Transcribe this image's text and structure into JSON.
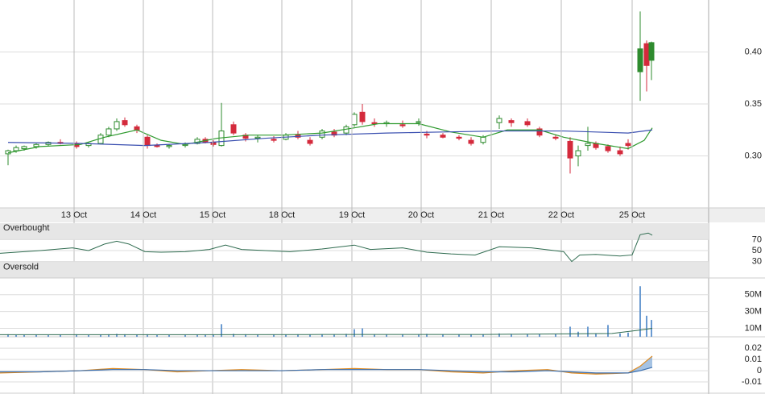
{
  "chart_data": [
    {
      "type": "candlestick",
      "xlim": [
        0,
        88
      ],
      "xticks": [
        {
          "value": 9.2,
          "label": "13 Oct"
        },
        {
          "value": 17.8,
          "label": "14 Oct"
        },
        {
          "value": 26.4,
          "label": "15 Oct"
        },
        {
          "value": 35,
          "label": "18 Oct"
        },
        {
          "value": 43.7,
          "label": "19 Oct"
        },
        {
          "value": 52.3,
          "label": "20 Oct"
        },
        {
          "value": 61,
          "label": "21 Oct"
        },
        {
          "value": 69.7,
          "label": "22 Oct"
        },
        {
          "value": 78.5,
          "label": "25 Oct"
        }
      ],
      "ylim": [
        0.25,
        0.45
      ],
      "yticks": [
        {
          "value": 0.3,
          "label": "0.30"
        },
        {
          "value": 0.35,
          "label": "0.35"
        },
        {
          "value": 0.4,
          "label": "0.40"
        }
      ],
      "grid": true,
      "up_color": "#2e8b2e",
      "down_color": "#d42a3c",
      "x": [
        1,
        2,
        3,
        4.5,
        6,
        7.5,
        9.5,
        11,
        12.5,
        13.5,
        14.5,
        15.5,
        17,
        18.3,
        19.5,
        21,
        23,
        24.5,
        25.5,
        26.5,
        27.5,
        29,
        30.5,
        32,
        34,
        35.5,
        37,
        38.5,
        40,
        41.5,
        43,
        44,
        45,
        46.5,
        48,
        50,
        52,
        53,
        55,
        57,
        58.5,
        60,
        62,
        63.5,
        65.5,
        67,
        69,
        70.8,
        71.8,
        73,
        74,
        75.5,
        77,
        78,
        79.5,
        80.3,
        80.9
      ],
      "open": [
        0.302,
        0.305,
        0.307,
        0.309,
        0.311,
        0.313,
        0.312,
        0.31,
        0.312,
        0.32,
        0.326,
        0.334,
        0.328,
        0.318,
        0.31,
        0.309,
        0.31,
        0.312,
        0.316,
        0.313,
        0.31,
        0.33,
        0.32,
        0.317,
        0.316,
        0.316,
        0.32,
        0.315,
        0.318,
        0.323,
        0.322,
        0.33,
        0.342,
        0.332,
        0.331,
        0.33,
        0.332,
        0.321,
        0.32,
        0.318,
        0.315,
        0.313,
        0.332,
        0.334,
        0.333,
        0.326,
        0.318,
        0.314,
        0.3,
        0.31,
        0.312,
        0.309,
        0.305,
        0.312,
        0.381,
        0.408,
        0.392
      ],
      "high": [
        0.306,
        0.31,
        0.31,
        0.312,
        0.314,
        0.316,
        0.314,
        0.313,
        0.322,
        0.328,
        0.336,
        0.337,
        0.33,
        0.32,
        0.312,
        0.311,
        0.313,
        0.318,
        0.318,
        0.315,
        0.351,
        0.333,
        0.322,
        0.32,
        0.319,
        0.322,
        0.324,
        0.318,
        0.326,
        0.326,
        0.33,
        0.342,
        0.35,
        0.336,
        0.334,
        0.334,
        0.336,
        0.324,
        0.322,
        0.32,
        0.318,
        0.32,
        0.339,
        0.336,
        0.336,
        0.328,
        0.32,
        0.318,
        0.31,
        0.328,
        0.314,
        0.311,
        0.309,
        0.316,
        0.439,
        0.411,
        0.41
      ],
      "low": [
        0.291,
        0.303,
        0.305,
        0.307,
        0.309,
        0.311,
        0.307,
        0.308,
        0.311,
        0.318,
        0.324,
        0.328,
        0.322,
        0.307,
        0.308,
        0.307,
        0.308,
        0.311,
        0.312,
        0.309,
        0.309,
        0.32,
        0.314,
        0.313,
        0.313,
        0.315,
        0.316,
        0.31,
        0.316,
        0.318,
        0.32,
        0.328,
        0.33,
        0.328,
        0.328,
        0.327,
        0.329,
        0.317,
        0.317,
        0.315,
        0.31,
        0.311,
        0.326,
        0.328,
        0.328,
        0.318,
        0.315,
        0.283,
        0.29,
        0.305,
        0.306,
        0.303,
        0.3,
        0.306,
        0.353,
        0.362,
        0.373
      ],
      "close": [
        0.305,
        0.308,
        0.309,
        0.311,
        0.313,
        0.312,
        0.309,
        0.312,
        0.32,
        0.326,
        0.333,
        0.33,
        0.325,
        0.31,
        0.309,
        0.31,
        0.311,
        0.316,
        0.313,
        0.311,
        0.324,
        0.322,
        0.317,
        0.318,
        0.315,
        0.32,
        0.318,
        0.312,
        0.324,
        0.32,
        0.328,
        0.34,
        0.333,
        0.331,
        0.332,
        0.329,
        0.333,
        0.32,
        0.318,
        0.317,
        0.312,
        0.318,
        0.336,
        0.332,
        0.33,
        0.32,
        0.317,
        0.298,
        0.305,
        0.312,
        0.308,
        0.305,
        0.302,
        0.31,
        0.403,
        0.387,
        0.409
      ],
      "lines": [
        {
          "color": "#2e9a2e",
          "x": [
            1,
            5,
            10,
            13,
            17,
            20,
            23,
            27,
            31,
            35,
            40,
            44,
            47,
            52,
            56,
            60,
            63,
            67,
            70,
            74,
            78,
            80,
            81
          ],
          "values": [
            0.303,
            0.309,
            0.311,
            0.318,
            0.325,
            0.315,
            0.311,
            0.317,
            0.32,
            0.32,
            0.322,
            0.327,
            0.331,
            0.331,
            0.323,
            0.318,
            0.325,
            0.325,
            0.318,
            0.312,
            0.307,
            0.315,
            0.327
          ]
        },
        {
          "color": "#3a4fb0",
          "x": [
            1,
            10,
            18,
            26,
            33,
            40,
            48,
            55,
            62,
            70,
            78,
            81
          ],
          "values": [
            0.313,
            0.312,
            0.31,
            0.313,
            0.317,
            0.32,
            0.322,
            0.323,
            0.324,
            0.324,
            0.322,
            0.325
          ]
        }
      ]
    },
    {
      "type": "line",
      "ylim": [
        0,
        100
      ],
      "yticks": [
        30,
        50,
        70
      ],
      "color": "#2e6b4f",
      "annotations": [
        "Overbought",
        "Oversold"
      ],
      "x": [
        0,
        5,
        9,
        11,
        13,
        14.5,
        16,
        18,
        20,
        23,
        26,
        28,
        30,
        33,
        36,
        40,
        44,
        46,
        50,
        53,
        56,
        59,
        62,
        66,
        70,
        71,
        72,
        74,
        77,
        78.5,
        79.5,
        80.5,
        81
      ],
      "values": [
        45,
        50,
        55,
        50,
        62,
        67,
        62,
        48,
        47,
        48,
        52,
        60,
        52,
        50,
        48,
        53,
        60,
        52,
        55,
        47,
        44,
        42,
        57,
        55,
        48,
        30,
        42,
        43,
        40,
        42,
        79,
        82,
        78
      ]
    },
    {
      "type": "bar",
      "ylim": [
        0,
        65000000
      ],
      "yticks": [
        {
          "value": 10000000,
          "label": "10M"
        },
        {
          "value": 30000000,
          "label": "30M"
        },
        {
          "value": 50000000,
          "label": "50M"
        }
      ],
      "color": "#6b9bd1",
      "x": [
        1,
        2,
        3,
        4.5,
        6,
        7.5,
        9.5,
        11,
        12.5,
        13.5,
        14.5,
        15.5,
        17,
        18.3,
        19.5,
        21,
        23,
        24.5,
        25.5,
        26.5,
        27.5,
        29,
        30.5,
        32,
        34,
        35.5,
        37,
        38.5,
        40,
        41.5,
        43,
        44,
        45,
        46.5,
        48,
        50,
        52,
        53,
        55,
        57,
        58.5,
        60,
        62,
        63.5,
        65.5,
        67,
        69,
        70.8,
        71.8,
        73,
        74,
        75.5,
        77,
        78,
        79.5,
        80.3,
        80.9
      ],
      "values": [
        3000000,
        2000000,
        2200000,
        2500000,
        2000000,
        2300000,
        3000000,
        2000000,
        2500000,
        3000000,
        3500000,
        3000000,
        2500000,
        3000000,
        2000000,
        2000000,
        2200000,
        2500000,
        2800000,
        2500000,
        15000000,
        3500000,
        3000000,
        2500000,
        2500000,
        2800000,
        3000000,
        2500000,
        3000000,
        3000000,
        3500000,
        9000000,
        10000000,
        3000000,
        2800000,
        2500000,
        3000000,
        3500000,
        2500000,
        2500000,
        3000000,
        3000000,
        4000000,
        3000000,
        2800000,
        3000000,
        3000000,
        12000000,
        6000000,
        12000000,
        4000000,
        14000000,
        4000000,
        5000000,
        60000000,
        25000000,
        20000000
      ],
      "average": {
        "color": "#2e6b4f",
        "x": [
          0,
          20,
          40,
          60,
          70,
          76,
          79.5,
          81
        ],
        "values": [
          2500000,
          2500000,
          2700000,
          2800000,
          3500000,
          4000000,
          8000000,
          10000000
        ]
      }
    },
    {
      "type": "line",
      "ylim": [
        -0.02,
        0.028
      ],
      "yticks": [
        -0.01,
        0,
        0.01,
        0.02
      ],
      "x": [
        0,
        5,
        10,
        14,
        18,
        22,
        26,
        30,
        35,
        40,
        44,
        48,
        52,
        56,
        60,
        64,
        68,
        71,
        74,
        78,
        79.5,
        81
      ],
      "series": [
        {
          "color": "#e08a1e",
          "values": [
            -0.002,
            -0.001,
            0,
            0.002,
            0.001,
            -0.001,
            0,
            0.001,
            0,
            0.001,
            0.002,
            0.001,
            0.001,
            -0.001,
            -0.002,
            0,
            0.001,
            -0.002,
            -0.003,
            -0.002,
            0.004,
            0.013
          ]
        },
        {
          "color": "#3a6fb0",
          "values": [
            -0.001,
            -0.001,
            0,
            0.001,
            0.001,
            0,
            0,
            0,
            0,
            0.001,
            0.001,
            0.001,
            0.001,
            0,
            -0.001,
            -0.001,
            0,
            -0.001,
            -0.002,
            -0.002,
            0,
            0.003
          ]
        }
      ]
    }
  ]
}
